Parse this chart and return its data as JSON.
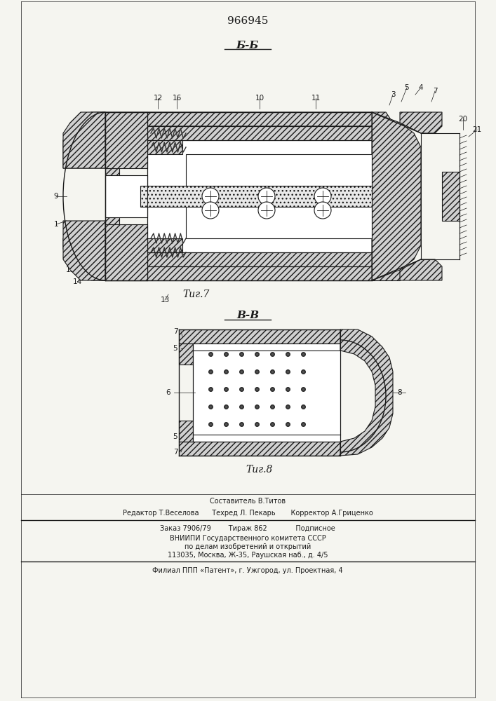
{
  "patent_number": "966945",
  "fig7_label": "Τиг.7",
  "fig8_label": "Τиг.8",
  "section_bb": "Б-Б",
  "section_vv": "В-В",
  "footer_line1": "Составитель В.Титов",
  "footer_line2": "Редактор Т.Веселова      Техред Л. Пекарь       Корректор А.Гриценко",
  "footer_line3": "Заказ 7906/79        Тираж 862             Подписное",
  "footer_line4": "ВНИИПИ Государственного комитета СССР",
  "footer_line5": "по делам изобретений и открытий",
  "footer_line6": "113035, Москва, Ж-35, Раушская наб., д. 4/5",
  "footer_line7": "Филиал ППП «Патент», г. Ужгород, ул. Проектная, 4",
  "bg_color": "#f5f5f0",
  "line_color": "#1a1a1a"
}
